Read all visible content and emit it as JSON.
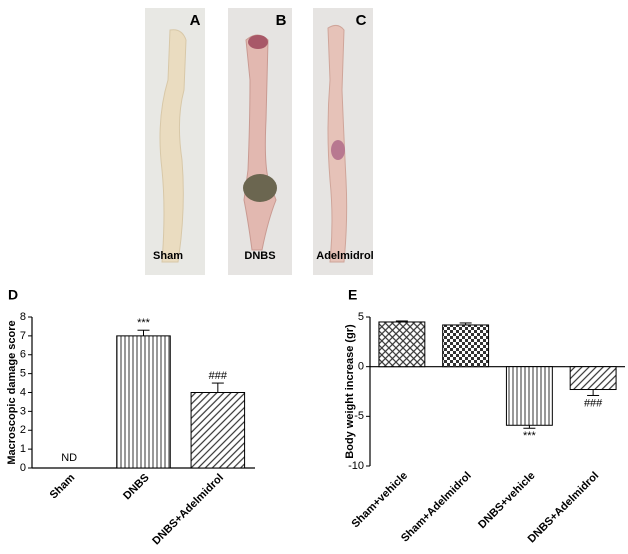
{
  "photos": [
    {
      "letter": "A",
      "caption": "Sham"
    },
    {
      "letter": "B",
      "caption": "DNBS"
    },
    {
      "letter": "C",
      "caption": "Adelmidrol"
    }
  ],
  "chart_data": [
    {
      "type": "bar",
      "panel": "D",
      "y_label": "Macroscopic damage score",
      "categories": [
        "Sham",
        "DNBS",
        "DNBS+Adelmidrol"
      ],
      "values": [
        null,
        7.0,
        4.0
      ],
      "errors": [
        null,
        0.3,
        0.5
      ],
      "patterns": [
        "none",
        "vertical",
        "diagonal"
      ],
      "annotations": [
        {
          "text": "ND",
          "x": "Sham"
        },
        {
          "text": "***",
          "x": "DNBS"
        },
        {
          "text": "###",
          "x": "DNBS+Adelmidrol"
        }
      ],
      "ylim": [
        0,
        8
      ],
      "yticks": [
        0,
        1,
        2,
        3,
        4,
        5,
        6,
        7,
        8
      ]
    },
    {
      "type": "bar",
      "panel": "E",
      "y_label": "Body weight increase (gr)",
      "categories": [
        "Sham+vehicle",
        "Sham+Adelmidrol",
        "DNBS+vehicle",
        "DNBS+Adelmidrol"
      ],
      "values": [
        4.5,
        4.2,
        -5.9,
        -2.3
      ],
      "errors": [
        0.1,
        0.2,
        0.3,
        0.6
      ],
      "patterns": [
        "crosshatch",
        "checker",
        "vertical",
        "diagonal"
      ],
      "annotations": [
        {
          "text": "***",
          "x": "DNBS+vehicle"
        },
        {
          "text": "###",
          "x": "DNBS+Adelmidrol"
        }
      ],
      "ylim": [
        -10,
        5
      ],
      "yticks": [
        -10,
        -5,
        0,
        5
      ]
    }
  ]
}
